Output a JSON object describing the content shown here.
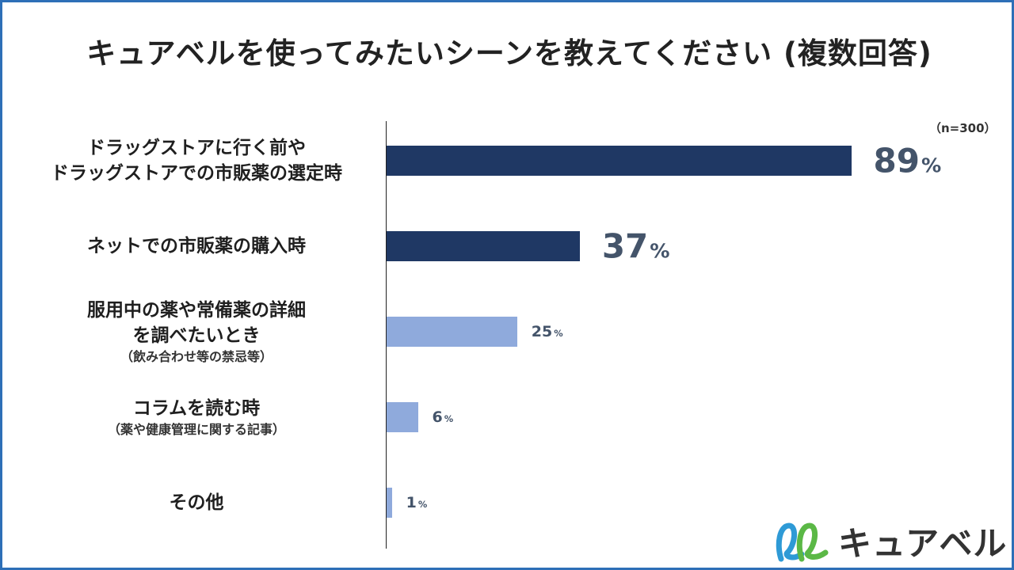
{
  "title": "キュアベルを使ってみたいシーンを教えてください (複数回答)",
  "sample_size": "（n=300）",
  "chart_data": {
    "type": "bar",
    "orientation": "horizontal",
    "categories": [
      {
        "main": [
          "ドラッグストアに行く前や",
          "ドラッグストアでの市販薬の選定時"
        ],
        "sub": []
      },
      {
        "main": [
          "ネットでの市販薬の購入時"
        ],
        "sub": []
      },
      {
        "main": [
          "服用中の薬や常備薬の詳細",
          "を調べたいとき"
        ],
        "sub": [
          "（飲み合わせ等の禁忌等）"
        ]
      },
      {
        "main": [
          "コラムを読む時"
        ],
        "sub": [
          "（薬や健康管理に関する記事）"
        ]
      },
      {
        "main": [
          "その他"
        ],
        "sub": []
      }
    ],
    "values": [
      89,
      37,
      25,
      6,
      1
    ],
    "value_suffix": "%",
    "xlim": [
      0,
      100
    ],
    "grid": false,
    "bar_colors": [
      "#1f3864",
      "#1f3864",
      "#8faadc",
      "#8faadc",
      "#8faadc"
    ],
    "value_label_colors": "#44546a"
  },
  "logo": {
    "text": "キュアベル",
    "icon": "double-loop-logo-icon",
    "colors": [
      "#2e9ad6",
      "#5bb846"
    ]
  }
}
